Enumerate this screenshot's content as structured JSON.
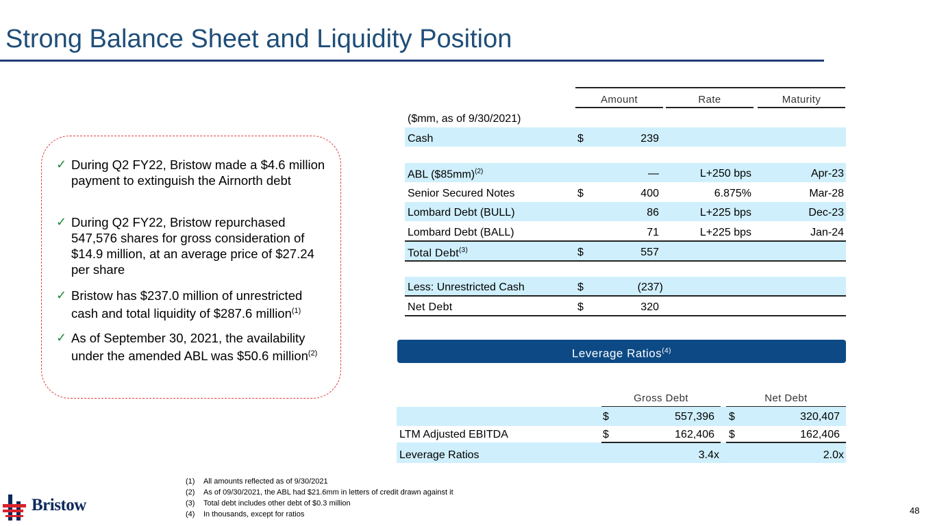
{
  "title": "Strong Balance Sheet and Liquidity Position",
  "bullets": [
    {
      "text": "During Q2 FY22, Bristow made a $4.6 million payment to extinguish the Airnorth debt",
      "sup": ""
    },
    {
      "text": "During Q2 FY22, Bristow repurchased 547,576 shares for gross consideration of $14.9 million, at an average price of $27.24 per share",
      "sup": ""
    },
    {
      "text": "Bristow has $237.0 million of unrestricted cash and total liquidity of $287.6 million",
      "sup": "(1)"
    },
    {
      "text": "As of September 30, 2021, the availability under the amended ABL was $50.6 million",
      "sup": "(2)"
    }
  ],
  "check_glyph": "✓",
  "debt_table": {
    "headers": {
      "amount": "Amount",
      "rate": "Rate",
      "maturity": "Maturity"
    },
    "subtitle": "($mm, as of 9/30/2021)",
    "rows": [
      {
        "label": "Cash",
        "sup": "",
        "dollar": "$",
        "amount": "239",
        "rate": "",
        "maturity": ""
      },
      {
        "label": "ABL ($85mm)",
        "sup": "(2)",
        "dollar": "",
        "amount": "—",
        "rate": "L+250 bps",
        "maturity": "Apr-23"
      },
      {
        "label": "Senior Secured Notes",
        "sup": "",
        "dollar": "$",
        "amount": "400",
        "rate": "6.875%",
        "maturity": "Mar-28"
      },
      {
        "label": "Lombard Debt (BULL)",
        "sup": "",
        "dollar": "",
        "amount": "86",
        "rate": "L+225 bps",
        "maturity": "Dec-23"
      },
      {
        "label": "Lombard Debt (BALL)",
        "sup": "",
        "dollar": "",
        "amount": "71",
        "rate": "L+225 bps",
        "maturity": "Jan-24"
      },
      {
        "label": "Total Debt",
        "sup": "(3)",
        "dollar": "$",
        "amount": "557",
        "rate": "",
        "maturity": ""
      },
      {
        "label": "Less: Unrestricted Cash",
        "sup": "",
        "dollar": "$",
        "amount": "(237)",
        "rate": "",
        "maturity": ""
      },
      {
        "label": "Net Debt",
        "sup": "",
        "dollar": "$",
        "amount": "320",
        "rate": "",
        "maturity": ""
      }
    ]
  },
  "leverage": {
    "banner_title": "Leverage Ratios",
    "banner_sup": "(4)",
    "headers": {
      "gross": "Gross Debt",
      "net": "Net Debt"
    },
    "rows": [
      {
        "label": "",
        "gross_dollar": "$",
        "gross": "557,396",
        "net_dollar": "$",
        "net": "320,407"
      },
      {
        "label": "LTM Adjusted EBITDA",
        "gross_dollar": "$",
        "gross": "162,406",
        "net_dollar": "$",
        "net": "162,406"
      },
      {
        "label": "Leverage Ratios",
        "gross_dollar": "",
        "gross": "3.4x",
        "net_dollar": "",
        "net": "2.0x"
      }
    ]
  },
  "footnotes": [
    {
      "num": "(1)",
      "text": "All amounts reflected as of 9/30/2021"
    },
    {
      "num": "(2)",
      "text": "As of 09/30/2021, the ABL had $21.6mm in letters of credit drawn against it"
    },
    {
      "num": "(3)",
      "text": "Total debt includes other debt of $0.3 million"
    },
    {
      "num": "(4)",
      "text": "In thousands, except for ratios"
    }
  ],
  "logo_text": "Bristow",
  "page_number": "48",
  "colors": {
    "title": "#1f4e79",
    "banner": "#0d4a85",
    "row_highlight": "#cfeffc",
    "callout_border": "#e03c3c",
    "check": "#1f8a3a"
  }
}
